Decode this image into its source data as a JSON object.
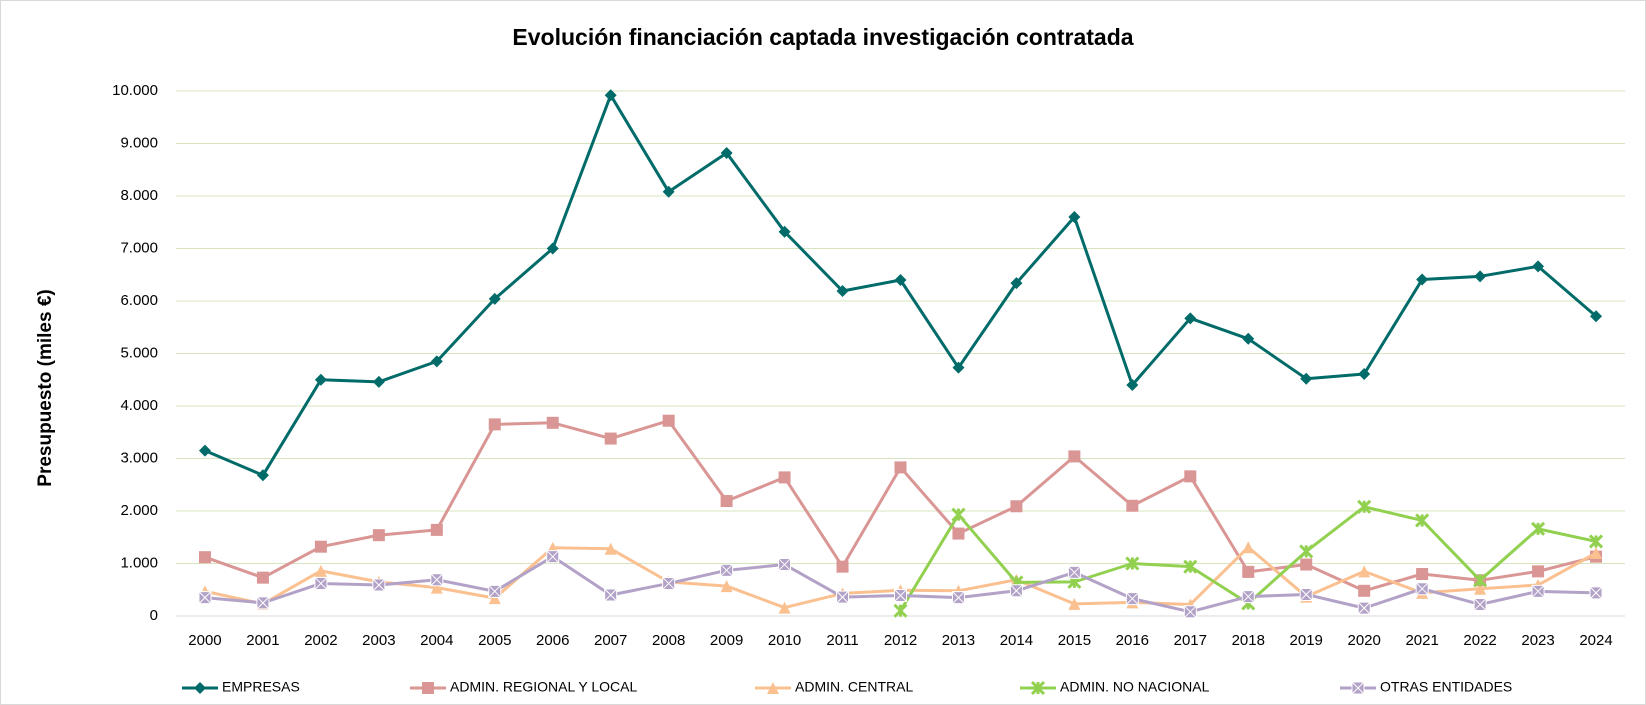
{
  "chart_data": {
    "type": "line",
    "title": "Evolución financiación captada investigación contratada",
    "y_label": "Presupuesto (miles €)",
    "categories": [
      "2000",
      "2001",
      "2002",
      "2003",
      "2004",
      "2005",
      "2006",
      "2007",
      "2008",
      "2009",
      "2010",
      "2011",
      "2012",
      "2013",
      "2014",
      "2015",
      "2016",
      "2017",
      "2018",
      "2019",
      "2020",
      "2021",
      "2022",
      "2023",
      "2024"
    ],
    "ylim": [
      0,
      10000
    ],
    "yticks": [
      0,
      {
        "value": 1000,
        "label": "1.000"
      },
      {
        "value": 2000,
        "label": "2.000"
      },
      {
        "value": 3000,
        "label": "3.000"
      },
      {
        "value": 4000,
        "label": "4.000"
      },
      {
        "value": 5000,
        "label": "5.000"
      },
      {
        "value": 6000,
        "label": "6.000"
      },
      {
        "value": 7000,
        "label": "7.000"
      },
      {
        "value": 8000,
        "label": "8.000"
      },
      {
        "value": 9000,
        "label": "9.000"
      },
      {
        "value": 10000,
        "label": "10.000"
      }
    ],
    "grid": true,
    "legend": "bottom",
    "series": [
      {
        "name": "EMPRESAS",
        "color": "#006b68",
        "marker": "diamond",
        "values": [
          3150,
          2680,
          4500,
          4460,
          4850,
          6040,
          7000,
          9920,
          8080,
          8820,
          7320,
          6190,
          6400,
          4730,
          6340,
          7600,
          4400,
          5670,
          5280,
          4520,
          4610,
          6410,
          6470,
          6660,
          5710
        ]
      },
      {
        "name": "ADMIN. REGIONAL Y LOCAL",
        "color": "#d99694",
        "marker": "square",
        "values": [
          1120,
          730,
          1320,
          1540,
          1640,
          3650,
          3680,
          3380,
          3720,
          2190,
          2640,
          940,
          2830,
          1570,
          2090,
          3040,
          2100,
          2660,
          840,
          980,
          480,
          800,
          680,
          850,
          1130
        ]
      },
      {
        "name": "ADMIN. CENTRAL",
        "color": "#fac090",
        "marker": "triangle",
        "values": [
          470,
          230,
          860,
          650,
          540,
          340,
          1300,
          1280,
          650,
          570,
          160,
          430,
          490,
          480,
          690,
          230,
          260,
          220,
          1310,
          370,
          850,
          440,
          520,
          590,
          1200
        ]
      },
      {
        "name": "ADMIN. NO NACIONAL",
        "color": "#92d050",
        "marker": "cross",
        "values": [
          null,
          null,
          null,
          null,
          null,
          null,
          null,
          null,
          null,
          null,
          null,
          null,
          100,
          1930,
          640,
          650,
          1000,
          940,
          240,
          1230,
          2080,
          1820,
          680,
          1660,
          1420
        ]
      },
      {
        "name": "OTRAS ENTIDADES",
        "color": "#b3a2c7",
        "marker": "xsquare",
        "values": [
          350,
          250,
          620,
          590,
          690,
          470,
          1130,
          400,
          620,
          870,
          980,
          360,
          390,
          350,
          480,
          830,
          330,
          80,
          370,
          410,
          150,
          520,
          220,
          470,
          440
        ]
      }
    ]
  }
}
